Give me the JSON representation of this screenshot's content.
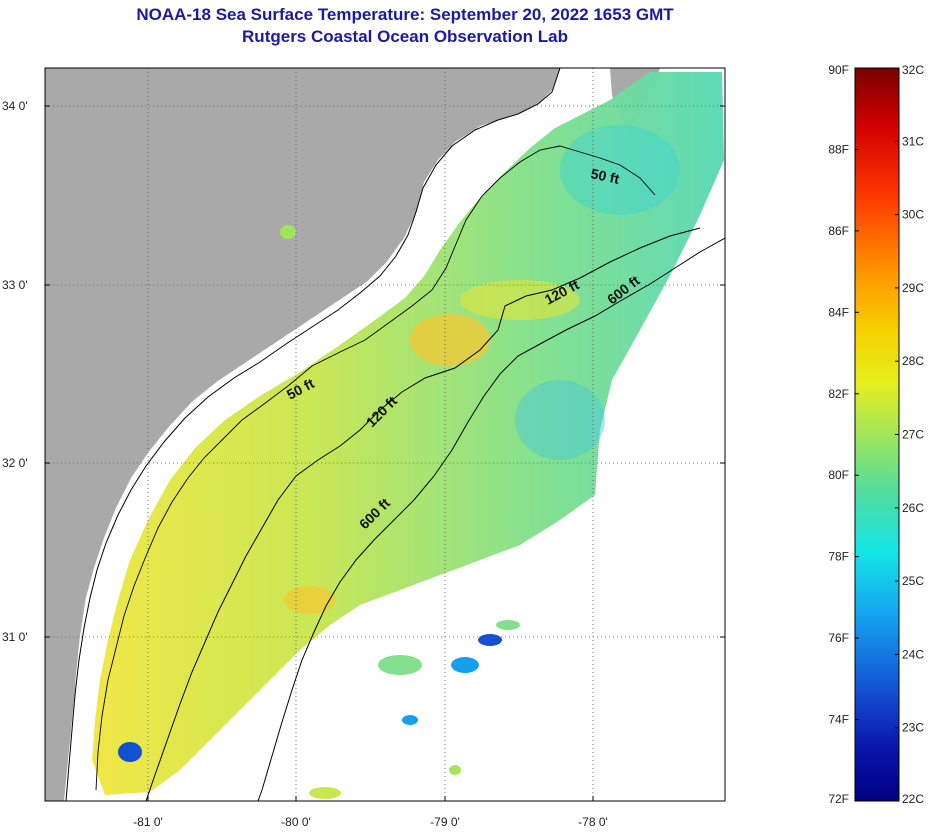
{
  "title_line1": "NOAA-18 Sea Surface Temperature:  September 20, 2022 1653 GMT",
  "title_line2": "Rutgers Coastal Ocean Observation Lab",
  "lat_labels": [
    "34 0'",
    "33 0'",
    "32 0'",
    "31 0'"
  ],
  "lon_labels": [
    "-81 0'",
    "-80 0'",
    "-79 0'",
    "-78 0'"
  ],
  "depth_contours": {
    "ft50": "50 ft",
    "ft120": "120 ft",
    "ft600": "600 ft"
  },
  "colorbar": {
    "fahrenheit_labels": [
      "90F",
      "88F",
      "86F",
      "84F",
      "82F",
      "80F",
      "78F",
      "76F",
      "74F",
      "72F"
    ],
    "celsius_labels": [
      "32C",
      "31C",
      "30C",
      "29C",
      "28C",
      "27C",
      "26C",
      "25C",
      "24C",
      "23C",
      "22C"
    ],
    "colors": {
      "warmest": "#7a0000",
      "hot": "#ff2a00",
      "orange": "#ff9900",
      "yellow": "#f5e610",
      "yellow_green": "#c8e650",
      "green": "#64dc8c",
      "cyan": "#14e6e6",
      "sky_blue": "#14a0f0",
      "blue": "#1450d2",
      "navy": "#000082"
    }
  },
  "colors": {
    "land": "#a9a9a9",
    "no_data": "#ffffff",
    "title": "#1a1aa6"
  }
}
